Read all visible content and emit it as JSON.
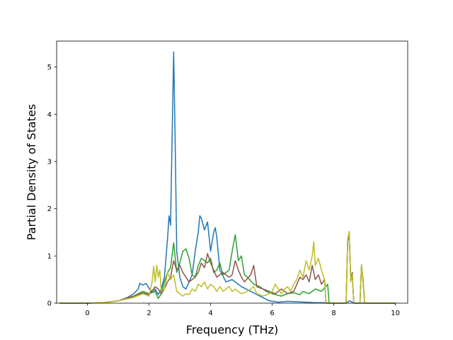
{
  "chart_data": {
    "type": "line",
    "title": "",
    "xlabel": "Frequency (THz)",
    "ylabel": "Partial Density of States",
    "xlim": [
      -1.0,
      10.4
    ],
    "ylim": [
      0,
      5.55
    ],
    "xticks": [
      0,
      2,
      4,
      6,
      8,
      10
    ],
    "yticks": [
      0,
      1,
      2,
      3,
      4,
      5
    ],
    "grid": false,
    "legend": "none",
    "series": [
      {
        "color": "#1f77b4",
        "points": [
          [
            -0.9,
            0
          ],
          [
            0,
            0
          ],
          [
            0.5,
            0.01
          ],
          [
            1.0,
            0.05
          ],
          [
            1.3,
            0.12
          ],
          [
            1.5,
            0.2
          ],
          [
            1.65,
            0.3
          ],
          [
            1.7,
            0.42
          ],
          [
            1.8,
            0.38
          ],
          [
            1.9,
            0.42
          ],
          [
            2.0,
            0.32
          ],
          [
            2.1,
            0.22
          ],
          [
            2.2,
            0.3
          ],
          [
            2.3,
            0.18
          ],
          [
            2.4,
            0.3
          ],
          [
            2.5,
            0.55
          ],
          [
            2.6,
            1.35
          ],
          [
            2.65,
            1.85
          ],
          [
            2.7,
            1.65
          ],
          [
            2.75,
            3.5
          ],
          [
            2.8,
            5.32
          ],
          [
            2.85,
            3.4
          ],
          [
            2.9,
            1.1
          ],
          [
            3.0,
            0.55
          ],
          [
            3.1,
            0.35
          ],
          [
            3.2,
            0.3
          ],
          [
            3.3,
            0.45
          ],
          [
            3.4,
            0.6
          ],
          [
            3.5,
            1.1
          ],
          [
            3.6,
            1.5
          ],
          [
            3.65,
            1.85
          ],
          [
            3.7,
            1.8
          ],
          [
            3.8,
            1.55
          ],
          [
            3.9,
            1.72
          ],
          [
            4.0,
            1.1
          ],
          [
            4.1,
            1.5
          ],
          [
            4.15,
            1.6
          ],
          [
            4.2,
            1.4
          ],
          [
            4.3,
            0.7
          ],
          [
            4.5,
            0.45
          ],
          [
            4.7,
            0.5
          ],
          [
            4.8,
            0.45
          ],
          [
            5.0,
            0.35
          ],
          [
            5.3,
            0.25
          ],
          [
            5.6,
            0.15
          ],
          [
            5.9,
            0.05
          ],
          [
            6.2,
            0.02
          ],
          [
            6.5,
            0.04
          ],
          [
            6.8,
            0.03
          ],
          [
            7.1,
            0.02
          ],
          [
            7.4,
            0.01
          ],
          [
            7.7,
            0.01
          ],
          [
            7.8,
            0
          ],
          [
            8.4,
            0
          ],
          [
            8.45,
            0.02
          ],
          [
            8.5,
            0.05
          ],
          [
            8.6,
            0.02
          ],
          [
            8.7,
            0
          ],
          [
            10.0,
            0
          ]
        ]
      },
      {
        "color": "#2ca02c",
        "points": [
          [
            -0.9,
            0
          ],
          [
            0,
            0
          ],
          [
            0.5,
            0.01
          ],
          [
            1.0,
            0.05
          ],
          [
            1.5,
            0.15
          ],
          [
            1.8,
            0.25
          ],
          [
            2.0,
            0.2
          ],
          [
            2.2,
            0.25
          ],
          [
            2.3,
            0.1
          ],
          [
            2.4,
            0.2
          ],
          [
            2.5,
            0.45
          ],
          [
            2.6,
            0.65
          ],
          [
            2.7,
            0.75
          ],
          [
            2.8,
            1.28
          ],
          [
            2.9,
            0.65
          ],
          [
            3.0,
            0.85
          ],
          [
            3.1,
            1.1
          ],
          [
            3.2,
            1.15
          ],
          [
            3.3,
            0.95
          ],
          [
            3.4,
            0.6
          ],
          [
            3.5,
            0.55
          ],
          [
            3.6,
            0.8
          ],
          [
            3.7,
            0.95
          ],
          [
            3.8,
            0.9
          ],
          [
            3.9,
            0.85
          ],
          [
            4.0,
            0.95
          ],
          [
            4.1,
            0.65
          ],
          [
            4.2,
            0.7
          ],
          [
            4.3,
            0.85
          ],
          [
            4.4,
            0.6
          ],
          [
            4.5,
            0.65
          ],
          [
            4.6,
            0.7
          ],
          [
            4.7,
            1.1
          ],
          [
            4.8,
            1.45
          ],
          [
            4.9,
            0.9
          ],
          [
            5.0,
            1.0
          ],
          [
            5.1,
            0.6
          ],
          [
            5.2,
            0.55
          ],
          [
            5.4,
            0.4
          ],
          [
            5.6,
            0.35
          ],
          [
            5.8,
            0.25
          ],
          [
            6.0,
            0.2
          ],
          [
            6.3,
            0.15
          ],
          [
            6.5,
            0.2
          ],
          [
            6.7,
            0.22
          ],
          [
            6.9,
            0.18
          ],
          [
            7.0,
            0.25
          ],
          [
            7.2,
            0.2
          ],
          [
            7.4,
            0.3
          ],
          [
            7.6,
            0.25
          ],
          [
            7.8,
            0.4
          ],
          [
            7.85,
            0
          ],
          [
            8.4,
            0
          ],
          [
            8.45,
            1.3
          ],
          [
            8.5,
            1.45
          ],
          [
            8.55,
            0.5
          ],
          [
            8.6,
            0.6
          ],
          [
            8.65,
            0
          ],
          [
            8.85,
            0
          ],
          [
            8.9,
            0.8
          ],
          [
            8.95,
            0.5
          ],
          [
            9.0,
            0
          ],
          [
            10.0,
            0
          ]
        ]
      },
      {
        "color": "#8c564b",
        "points": [
          [
            -0.9,
            0
          ],
          [
            0,
            0
          ],
          [
            0.5,
            0.01
          ],
          [
            1.0,
            0.05
          ],
          [
            1.5,
            0.15
          ],
          [
            1.8,
            0.22
          ],
          [
            2.0,
            0.18
          ],
          [
            2.2,
            0.35
          ],
          [
            2.3,
            0.3
          ],
          [
            2.4,
            0.2
          ],
          [
            2.5,
            0.3
          ],
          [
            2.6,
            0.45
          ],
          [
            2.7,
            0.55
          ],
          [
            2.8,
            0.9
          ],
          [
            2.9,
            0.7
          ],
          [
            3.0,
            0.8
          ],
          [
            3.1,
            0.65
          ],
          [
            3.2,
            0.55
          ],
          [
            3.3,
            0.45
          ],
          [
            3.4,
            0.5
          ],
          [
            3.5,
            0.55
          ],
          [
            3.6,
            0.65
          ],
          [
            3.7,
            0.85
          ],
          [
            3.8,
            0.75
          ],
          [
            3.9,
            1.05
          ],
          [
            4.0,
            0.85
          ],
          [
            4.1,
            0.7
          ],
          [
            4.2,
            0.55
          ],
          [
            4.3,
            0.6
          ],
          [
            4.4,
            0.65
          ],
          [
            4.5,
            0.6
          ],
          [
            4.6,
            0.55
          ],
          [
            4.7,
            0.6
          ],
          [
            4.8,
            0.9
          ],
          [
            4.9,
            0.7
          ],
          [
            5.0,
            0.55
          ],
          [
            5.1,
            0.45
          ],
          [
            5.3,
            0.6
          ],
          [
            5.4,
            0.8
          ],
          [
            5.5,
            0.35
          ],
          [
            5.7,
            0.3
          ],
          [
            5.9,
            0.25
          ],
          [
            6.1,
            0.2
          ],
          [
            6.3,
            0.3
          ],
          [
            6.5,
            0.2
          ],
          [
            6.7,
            0.25
          ],
          [
            6.8,
            0.4
          ],
          [
            6.9,
            0.55
          ],
          [
            7.0,
            0.5
          ],
          [
            7.1,
            0.6
          ],
          [
            7.2,
            0.45
          ],
          [
            7.3,
            0.8
          ],
          [
            7.4,
            0.5
          ],
          [
            7.5,
            0.6
          ],
          [
            7.6,
            0.4
          ],
          [
            7.7,
            0.5
          ],
          [
            7.75,
            0
          ],
          [
            8.4,
            0
          ],
          [
            8.45,
            1.3
          ],
          [
            8.5,
            1.5
          ],
          [
            8.55,
            0.5
          ],
          [
            8.6,
            0.65
          ],
          [
            8.65,
            0
          ],
          [
            8.85,
            0
          ],
          [
            8.9,
            0.8
          ],
          [
            8.95,
            0.5
          ],
          [
            9.0,
            0
          ],
          [
            10.0,
            0
          ]
        ]
      },
      {
        "color": "#bcbd22",
        "points": [
          [
            -0.9,
            0
          ],
          [
            0,
            0
          ],
          [
            0.5,
            0.01
          ],
          [
            1.0,
            0.05
          ],
          [
            1.5,
            0.12
          ],
          [
            1.8,
            0.2
          ],
          [
            2.0,
            0.15
          ],
          [
            2.1,
            0.45
          ],
          [
            2.15,
            0.78
          ],
          [
            2.2,
            0.45
          ],
          [
            2.25,
            0.8
          ],
          [
            2.3,
            0.55
          ],
          [
            2.35,
            0.7
          ],
          [
            2.4,
            0.25
          ],
          [
            2.5,
            0.3
          ],
          [
            2.6,
            0.65
          ],
          [
            2.7,
            0.5
          ],
          [
            2.8,
            0.6
          ],
          [
            2.9,
            0.25
          ],
          [
            3.0,
            0.2
          ],
          [
            3.1,
            0.15
          ],
          [
            3.2,
            0.2
          ],
          [
            3.3,
            0.18
          ],
          [
            3.4,
            0.3
          ],
          [
            3.5,
            0.25
          ],
          [
            3.6,
            0.4
          ],
          [
            3.7,
            0.35
          ],
          [
            3.8,
            0.45
          ],
          [
            3.9,
            0.3
          ],
          [
            4.0,
            0.4
          ],
          [
            4.1,
            0.35
          ],
          [
            4.2,
            0.25
          ],
          [
            4.3,
            0.35
          ],
          [
            4.4,
            0.25
          ],
          [
            4.5,
            0.3
          ],
          [
            4.6,
            0.35
          ],
          [
            4.7,
            0.25
          ],
          [
            4.8,
            0.3
          ],
          [
            5.0,
            0.2
          ],
          [
            5.2,
            0.25
          ],
          [
            5.4,
            0.35
          ],
          [
            5.5,
            0.2
          ],
          [
            5.7,
            0.15
          ],
          [
            5.9,
            0.2
          ],
          [
            6.0,
            0.25
          ],
          [
            6.1,
            0.4
          ],
          [
            6.2,
            0.3
          ],
          [
            6.3,
            0.2
          ],
          [
            6.4,
            0.3
          ],
          [
            6.5,
            0.35
          ],
          [
            6.6,
            0.25
          ],
          [
            6.7,
            0.4
          ],
          [
            6.8,
            0.5
          ],
          [
            6.9,
            0.7
          ],
          [
            7.0,
            0.55
          ],
          [
            7.1,
            0.9
          ],
          [
            7.2,
            0.7
          ],
          [
            7.3,
            1.0
          ],
          [
            7.35,
            1.3
          ],
          [
            7.4,
            0.8
          ],
          [
            7.5,
            0.95
          ],
          [
            7.6,
            0.7
          ],
          [
            7.7,
            0.5
          ],
          [
            7.75,
            0
          ],
          [
            8.4,
            0
          ],
          [
            8.45,
            1.35
          ],
          [
            8.5,
            1.52
          ],
          [
            8.55,
            0.45
          ],
          [
            8.6,
            0.6
          ],
          [
            8.65,
            0
          ],
          [
            8.85,
            0
          ],
          [
            8.9,
            0.82
          ],
          [
            8.95,
            0.45
          ],
          [
            9.0,
            0
          ],
          [
            10.0,
            0
          ]
        ]
      }
    ]
  }
}
